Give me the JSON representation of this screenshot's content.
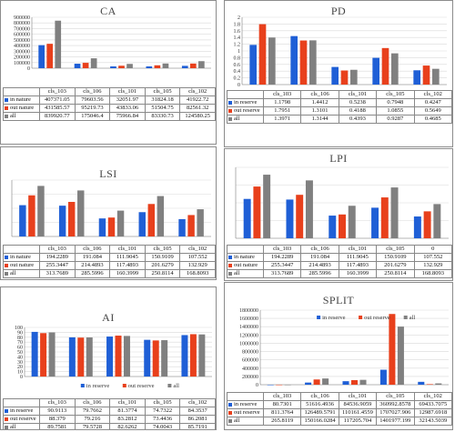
{
  "colors": {
    "series0": "#1f5fd6",
    "series1": "#e8401c",
    "series2": "#808080",
    "grid": "#d9d9d9",
    "axis": "#7f7f7f"
  },
  "chart_data": [
    {
      "type": "bar",
      "title": "CA",
      "legend_position": "top",
      "legend": [],
      "categories": [
        "cls_103",
        "cls_106",
        "cls_101",
        "cls_105",
        "cls_102"
      ],
      "series": [
        {
          "name": "in nature",
          "values": [
            407371.05,
            79603.56,
            32051.97,
            31824.18,
            41922.72
          ],
          "labels": [
            "407371.05",
            "79603.56",
            "32051.97",
            "31824.18",
            "41922.72"
          ]
        },
        {
          "name": "out nature",
          "values": [
            431585.57,
            95219.73,
            43833.06,
            51504.75,
            82561.32
          ],
          "labels": [
            "431585.57",
            "95219.73",
            "43833.06",
            "51504.75",
            "82561.32"
          ]
        },
        {
          "name": "all",
          "values": [
            839920.77,
            175046.4,
            75966.84,
            83330.73,
            124580.25
          ],
          "labels": [
            "839920.77",
            "175046.4",
            "75966.84",
            "83330.73",
            "124580.25"
          ]
        }
      ],
      "yticks": [
        "0",
        "100000",
        "200000",
        "300000",
        "400000",
        "500000",
        "600000",
        "700000",
        "800000",
        "900000"
      ],
      "ylim": [
        0,
        900000
      ]
    },
    {
      "type": "bar",
      "title": "PD",
      "legend_position": "bottom",
      "legend": [
        "in reserve",
        "out reserve",
        "all"
      ],
      "categories": [
        "cls_103",
        "cls_106",
        "cls_101",
        "cls_105",
        "cls_102"
      ],
      "series": [
        {
          "name": "in reserve",
          "values": [
            1.1798,
            1.4412,
            0.5238,
            0.7948,
            0.4247
          ],
          "labels": [
            "1.1798",
            "1.4412",
            "0.5238",
            "0.7948",
            "0.4247"
          ]
        },
        {
          "name": "out reserve",
          "values": [
            1.7951,
            1.3101,
            0.4188,
            1.0855,
            0.5649
          ],
          "labels": [
            "1.7951",
            "1.3101",
            "0.4188",
            "1.0855",
            "0.5649"
          ]
        },
        {
          "name": "all",
          "values": [
            1.3971,
            1.3144,
            0.4393,
            0.9287,
            0.4685
          ],
          "labels": [
            "1.3971",
            "1.3144",
            "0.4393",
            "0.9287",
            "0.4685"
          ]
        }
      ],
      "yticks": [
        "0",
        "0.2",
        "0.4",
        "0.6",
        "0.8",
        "1",
        "1.2",
        "1.4",
        "1.6",
        "1.8",
        "2"
      ],
      "ylim": [
        0,
        2
      ]
    },
    {
      "type": "bar",
      "title": "LSI",
      "legend_position": "bottom",
      "legend": [
        "in nature",
        "out nature",
        "all"
      ],
      "categories": [
        "cls_103",
        "cls_106",
        "cls_101",
        "cls_105",
        "cls_102"
      ],
      "series": [
        {
          "name": "in nature",
          "values": [
            194.2289,
            191.084,
            111.9045,
            150.9109,
            107.552
          ],
          "labels": [
            "194.2289",
            "191.084",
            "111.9045",
            "150.9109",
            "107.552"
          ]
        },
        {
          "name": "out nature",
          "values": [
            255.3447,
            214.4893,
            117.4893,
            201.6279,
            132.929
          ],
          "labels": [
            "255.3447",
            "214.4893",
            "117.4893",
            "201.6279",
            "132.929"
          ]
        },
        {
          "name": "all",
          "values": [
            313.7689,
            285.5996,
            160.3999,
            250.8114,
            168.8093
          ],
          "labels": [
            "313.7689",
            "285.5996",
            "160.3999",
            "250.8114",
            "168.8093"
          ]
        }
      ],
      "yticks": [],
      "ylim": [
        0,
        350
      ]
    },
    {
      "type": "bar",
      "title": "LPI",
      "legend_position": "bottom",
      "legend": [
        "in nature",
        "out nature",
        "all"
      ],
      "categories": [
        "cls_103",
        "cls_106",
        "cls_101",
        "cls_105",
        "0"
      ],
      "series": [
        {
          "name": "in nature",
          "values": [
            194.2289,
            191.084,
            111.9045,
            150.9109,
            107.552
          ],
          "labels": [
            "194.2289",
            "191.084",
            "111.9045",
            "150.9109",
            "107.552"
          ]
        },
        {
          "name": "out nature",
          "values": [
            255.3447,
            214.4893,
            117.4893,
            201.6279,
            132.929
          ],
          "labels": [
            "255.3447",
            "214.4893",
            "117.4893",
            "201.6279",
            "132.929"
          ]
        },
        {
          "name": "all",
          "values": [
            313.7689,
            285.5996,
            160.3999,
            250.8114,
            168.8093
          ],
          "labels": [
            "313.7689",
            "285.5996",
            "160.3999",
            "250.8114",
            "168.8093"
          ]
        }
      ],
      "yticks": [],
      "ylim": [
        0,
        350
      ]
    },
    {
      "type": "bar",
      "title": "AI",
      "legend_position": "bottom",
      "legend": [
        "in reserve",
        "out reserve",
        "all"
      ],
      "categories": [
        "cls_103",
        "cls_106",
        "cls_101",
        "cls_105",
        "cls_102"
      ],
      "series": [
        {
          "name": "in reserve",
          "values": [
            90.9113,
            79.7662,
            81.3774,
            74.7322,
            84.3537
          ],
          "labels": [
            "90.9113",
            "79.7662",
            "81.3774",
            "74.7322",
            "84.3537"
          ]
        },
        {
          "name": "out reserve",
          "values": [
            88.379,
            79.216,
            83.2812,
            73.4436,
            86.2081
          ],
          "labels": [
            "88.379",
            "79.216",
            "83.2812",
            "73.4436",
            "86.2081"
          ]
        },
        {
          "name": "all",
          "values": [
            89.7581,
            79.5728,
            82.6262,
            74.0043,
            85.7191
          ],
          "labels": [
            "89.7581",
            "79.5728",
            "82.6262",
            "74.0043",
            "85.7191"
          ]
        }
      ],
      "yticks": [
        "0",
        "10",
        "20",
        "30",
        "40",
        "50",
        "60",
        "70",
        "80",
        "90",
        "100"
      ],
      "ylim": [
        0,
        100
      ]
    },
    {
      "type": "bar",
      "title": "SPLIT",
      "legend_position": "top",
      "legend": [
        "in reserve",
        "out reserve",
        "all"
      ],
      "categories": [
        "cls_103",
        "cls_106",
        "cls_101",
        "cls_105",
        "cls_102"
      ],
      "series": [
        {
          "name": "in reserve",
          "values": [
            80.7301,
            51616.4936,
            84536.9059,
            360992.8578,
            69433.7075
          ],
          "labels": [
            "80.7301",
            "51616.4936",
            "84536.9059",
            "360992.8578",
            "69433.7075"
          ]
        },
        {
          "name": "out reserve",
          "values": [
            811.3764,
            126489.5791,
            110161.4559,
            1707027.906,
            12987.6918
          ],
          "labels": [
            "811.3764",
            "126489.5791",
            "110161.4559",
            "1707027.906",
            "12987.6918"
          ]
        },
        {
          "name": "all",
          "values": [
            265.8119,
            150166.0284,
            117205.704,
            1401977.199,
            32143.5039
          ],
          "labels": [
            "265.8119",
            "150166.0284",
            "117205.704",
            "1401977.199",
            "32143.5039"
          ]
        }
      ],
      "yticks": [
        "0",
        "200000",
        "400000",
        "600000",
        "800000",
        "1000000",
        "1200000",
        "1400000",
        "1600000",
        "1800000"
      ],
      "ylim": [
        0,
        1800000
      ]
    }
  ]
}
